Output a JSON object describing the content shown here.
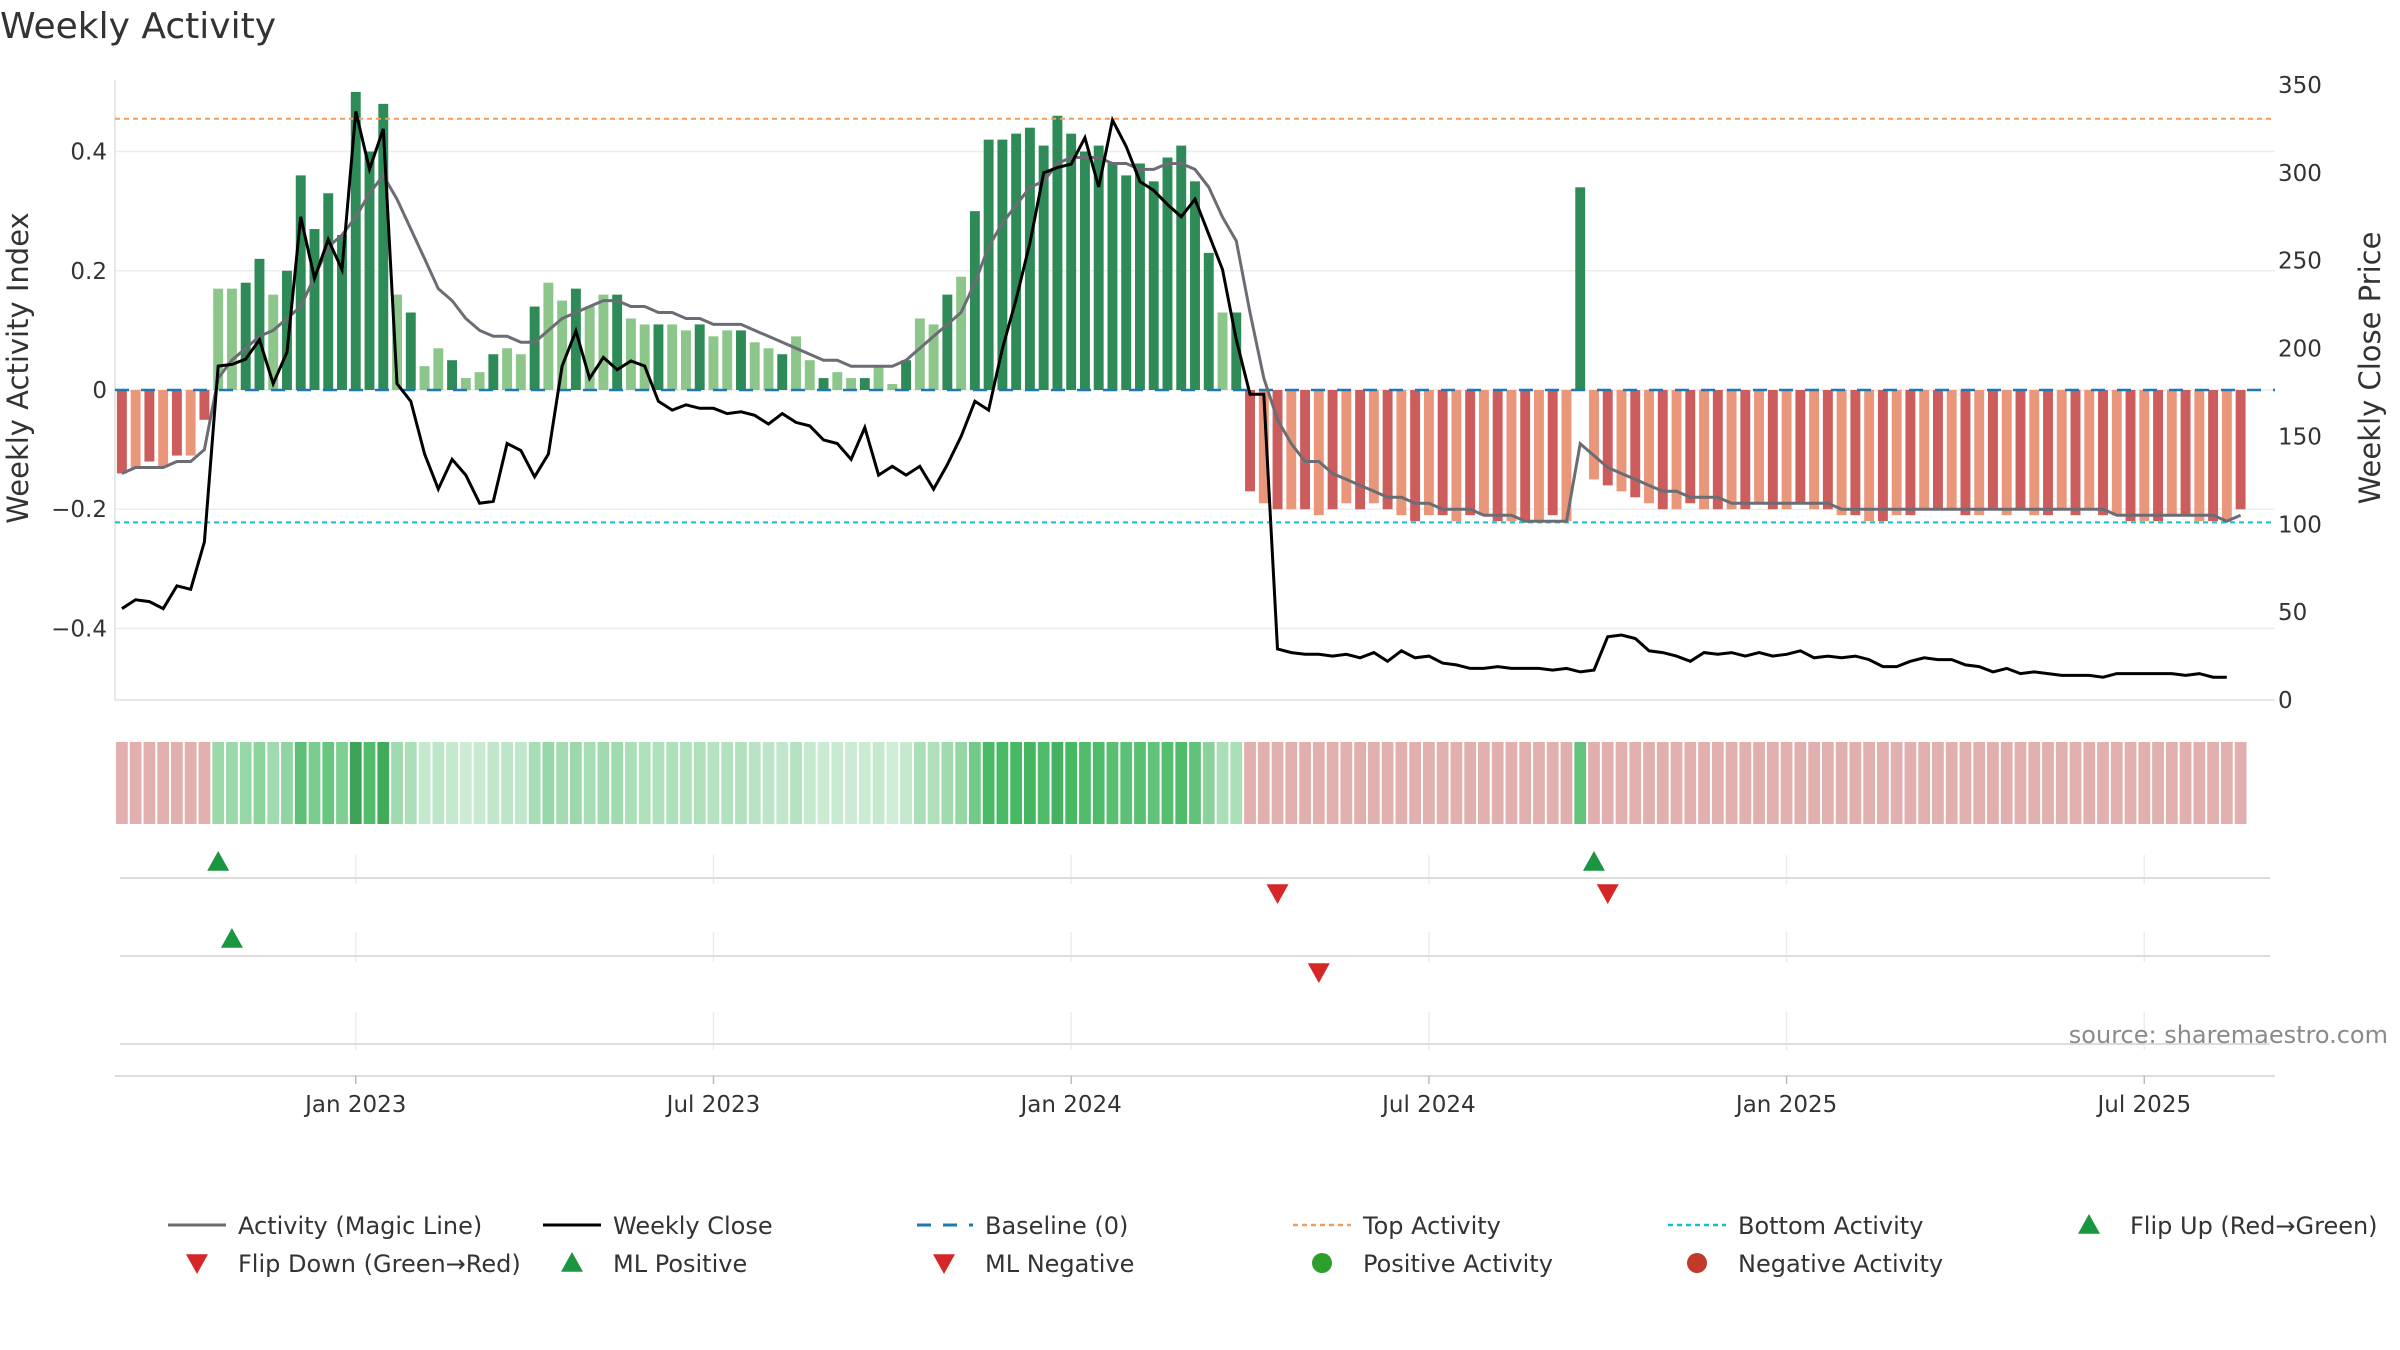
{
  "chart_data": {
    "type": "bar",
    "title": "Weekly Activity",
    "ylabel_left": "Weekly Activity Index",
    "ylabel_right": "Weekly Close Price",
    "ylim_left": [
      -0.52,
      0.52
    ],
    "ylim_right": [
      0,
      350
    ],
    "yticks_left": [
      {
        "v": 0.4,
        "label": "0.4"
      },
      {
        "v": 0.2,
        "label": "0.2"
      },
      {
        "v": 0,
        "label": "0"
      },
      {
        "v": -0.2,
        "label": "−0.2"
      },
      {
        "v": -0.4,
        "label": "−0.4"
      }
    ],
    "yticks_right": [
      0,
      50,
      100,
      150,
      200,
      250,
      300,
      350
    ],
    "x_ticks": [
      {
        "label": "Jan 2023",
        "week": 17
      },
      {
        "label": "Jul 2023",
        "week": 43
      },
      {
        "label": "Jan 2024",
        "week": 69
      },
      {
        "label": "Jul 2024",
        "week": 95
      },
      {
        "label": "Jan 2025",
        "week": 121
      },
      {
        "label": "Jul 2025",
        "week": 147
      }
    ],
    "x_week_ticks": [
      17,
      43,
      69,
      95,
      121,
      147
    ],
    "top_activity": 0.455,
    "bottom_activity": -0.222,
    "baseline": 0,
    "grid": true,
    "weeks": 157,
    "activity": [
      -0.14,
      -0.13,
      -0.12,
      -0.13,
      -0.11,
      -0.11,
      -0.05,
      0.17,
      0.17,
      0.18,
      0.22,
      0.16,
      0.2,
      0.36,
      0.27,
      0.33,
      0.26,
      0.5,
      0.4,
      0.48,
      0.16,
      0.13,
      0.04,
      0.07,
      0.05,
      0.02,
      0.03,
      0.06,
      0.07,
      0.06,
      0.14,
      0.18,
      0.15,
      0.17,
      0.14,
      0.16,
      0.16,
      0.12,
      0.11,
      0.11,
      0.11,
      0.1,
      0.11,
      0.09,
      0.1,
      0.1,
      0.08,
      0.07,
      0.06,
      0.09,
      0.05,
      0.02,
      0.03,
      0.02,
      0.02,
      0.04,
      0.01,
      0.05,
      0.12,
      0.11,
      0.16,
      0.19,
      0.3,
      0.42,
      0.42,
      0.43,
      0.44,
      0.41,
      0.46,
      0.43,
      0.4,
      0.41,
      0.38,
      0.36,
      0.38,
      0.35,
      0.39,
      0.41,
      0.35,
      0.23,
      0.13,
      0.13,
      -0.17,
      -0.19,
      -0.2,
      -0.2,
      -0.2,
      -0.21,
      -0.2,
      -0.19,
      -0.2,
      -0.19,
      -0.2,
      -0.21,
      -0.22,
      -0.21,
      -0.21,
      -0.22,
      -0.21,
      -0.21,
      -0.22,
      -0.22,
      -0.22,
      -0.22,
      -0.21,
      -0.22,
      0.34,
      -0.15,
      -0.16,
      -0.17,
      -0.18,
      -0.19,
      -0.2,
      -0.2,
      -0.19,
      -0.2,
      -0.2,
      -0.2,
      -0.2,
      -0.19,
      -0.2,
      -0.2,
      -0.19,
      -0.2,
      -0.2,
      -0.21,
      -0.21,
      -0.22,
      -0.22,
      -0.21,
      -0.21,
      -0.2,
      -0.2,
      -0.2,
      -0.21,
      -0.21,
      -0.2,
      -0.21,
      -0.2,
      -0.21,
      -0.21,
      -0.2,
      -0.21,
      -0.2,
      -0.21,
      -0.21,
      -0.22,
      -0.22,
      -0.22,
      -0.21,
      -0.21,
      -0.22,
      -0.22,
      -0.22,
      -0.2
    ],
    "magic_line": [
      -0.14,
      -0.13,
      -0.13,
      -0.13,
      -0.12,
      -0.12,
      -0.1,
      0.02,
      0.05,
      0.07,
      0.09,
      0.1,
      0.12,
      0.14,
      0.19,
      0.24,
      0.26,
      0.29,
      0.33,
      0.36,
      0.32,
      0.27,
      0.22,
      0.17,
      0.15,
      0.12,
      0.1,
      0.09,
      0.09,
      0.08,
      0.08,
      0.1,
      0.12,
      0.13,
      0.14,
      0.15,
      0.15,
      0.14,
      0.14,
      0.13,
      0.13,
      0.12,
      0.12,
      0.11,
      0.11,
      0.11,
      0.1,
      0.09,
      0.08,
      0.07,
      0.06,
      0.05,
      0.05,
      0.04,
      0.04,
      0.04,
      0.04,
      0.05,
      0.07,
      0.09,
      0.11,
      0.13,
      0.18,
      0.24,
      0.28,
      0.31,
      0.34,
      0.35,
      0.38,
      0.39,
      0.39,
      0.39,
      0.38,
      0.38,
      0.37,
      0.37,
      0.38,
      0.38,
      0.37,
      0.34,
      0.29,
      0.25,
      0.13,
      0.02,
      -0.05,
      -0.09,
      -0.12,
      -0.12,
      -0.14,
      -0.15,
      -0.16,
      -0.17,
      -0.18,
      -0.18,
      -0.19,
      -0.19,
      -0.2,
      -0.2,
      -0.2,
      -0.21,
      -0.21,
      -0.21,
      -0.22,
      -0.22,
      -0.22,
      -0.22,
      -0.09,
      -0.11,
      -0.13,
      -0.14,
      -0.15,
      -0.16,
      -0.17,
      -0.17,
      -0.18,
      -0.18,
      -0.18,
      -0.19,
      -0.19,
      -0.19,
      -0.19,
      -0.19,
      -0.19,
      -0.19,
      -0.19,
      -0.2,
      -0.2,
      -0.2,
      -0.2,
      -0.2,
      -0.2,
      -0.2,
      -0.2,
      -0.2,
      -0.2,
      -0.2,
      -0.2,
      -0.2,
      -0.2,
      -0.2,
      -0.2,
      -0.2,
      -0.2,
      -0.2,
      -0.2,
      -0.21,
      -0.21,
      -0.21,
      -0.21,
      -0.21,
      -0.21,
      -0.21,
      -0.21,
      -0.22,
      -0.21
    ],
    "weekly_close": [
      52,
      57,
      56,
      52,
      65,
      63,
      90,
      190,
      191,
      194,
      205,
      180,
      198,
      275,
      240,
      262,
      245,
      335,
      302,
      325,
      180,
      170,
      140,
      120,
      137,
      128,
      112,
      113,
      146,
      142,
      127,
      140,
      190,
      210,
      183,
      195,
      188,
      193,
      190,
      170,
      165,
      168,
      166,
      166,
      163,
      164,
      162,
      157,
      163,
      158,
      156,
      148,
      146,
      137,
      155,
      128,
      133,
      128,
      133,
      120,
      134,
      150,
      170,
      165,
      200,
      228,
      260,
      300,
      303,
      305,
      320,
      292,
      330,
      315,
      295,
      290,
      282,
      275,
      285,
      265,
      245,
      205,
      174,
      174,
      29,
      27,
      26,
      26,
      25,
      26,
      24,
      27,
      22,
      28,
      24,
      25,
      21,
      20,
      18,
      18,
      19,
      18,
      18,
      18,
      17,
      18,
      16,
      17,
      36,
      37,
      35,
      28,
      27,
      25,
      22,
      27,
      26,
      27,
      25,
      27,
      25,
      26,
      28,
      24,
      25,
      24,
      25,
      23,
      19,
      19,
      22,
      24,
      23,
      23,
      20,
      19,
      16,
      18,
      15,
      16,
      15,
      14,
      14,
      14,
      13,
      15,
      15,
      15,
      15,
      15,
      14,
      15,
      13,
      13
    ],
    "flip_up": [
      7,
      107
    ],
    "flip_down": [
      84,
      108
    ],
    "ml_positive": [
      8
    ],
    "ml_negative": [
      87
    ],
    "legend": [
      {
        "label": "Activity (Magic Line)",
        "kind": "line",
        "color": "#6c6c74"
      },
      {
        "label": "Weekly Close",
        "kind": "line",
        "color": "#000000"
      },
      {
        "label": "Baseline (0)",
        "kind": "dashed",
        "color": "#1f77b4"
      },
      {
        "label": "Top Activity",
        "kind": "dotted",
        "color": "#f39c5b"
      },
      {
        "label": "Bottom Activity",
        "kind": "dotted",
        "color": "#17becf"
      },
      {
        "label": "Flip Up (Red→Green)",
        "kind": "tri-up",
        "color": "#1a9641"
      },
      {
        "label": "Flip Down (Green→Red)",
        "kind": "tri-down",
        "color": "#d62728"
      },
      {
        "label": "ML Positive",
        "kind": "tri-up",
        "color": "#1a9641"
      },
      {
        "label": "ML Negative",
        "kind": "tri-down",
        "color": "#d62728"
      },
      {
        "label": "Positive Activity",
        "kind": "dot",
        "color": "#2ca02c"
      },
      {
        "label": "Negative Activity",
        "kind": "dot",
        "color": "#c0392b"
      }
    ],
    "colors": {
      "pos_strong": "#2e8b57",
      "pos_light": "#8cc68a",
      "neg_strong": "#cd5c5c",
      "neg_light": "#e9967a",
      "magic_line": "#6c6c74",
      "close": "#000000",
      "baseline": "#1f77b4",
      "top": "#f39c5b",
      "bottom": "#17becf",
      "marker_up": "#1a9641",
      "marker_down": "#d62728"
    }
  },
  "source_text": "source: sharemaestro.com"
}
